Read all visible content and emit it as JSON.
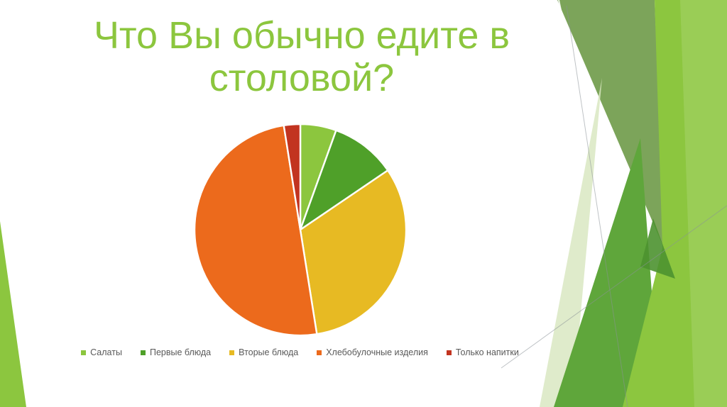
{
  "slide": {
    "title_lines": [
      "Что Вы обычно едите в",
      "столовой?"
    ]
  },
  "chart_data": {
    "type": "pie",
    "title": "Что Вы обычно едите в столовой?",
    "categories": [
      "Салаты",
      "Первые блюда",
      "Вторые блюда",
      "Хлебобулочные изделия",
      "Только напитки"
    ],
    "values": [
      5.5,
      10,
      32,
      50,
      2.5
    ],
    "unit": "percent-estimated-from-slice-angles",
    "colors": [
      "#8CC63E",
      "#4FA029",
      "#E7BA23",
      "#EC6A1C",
      "#C23420"
    ],
    "start_angle_deg": 0,
    "direction": "clockwise-from-top",
    "data_labels_shown": false,
    "legend_position": "bottom"
  },
  "theme": {
    "title_color": "#8CC63E",
    "legend_text_color": "#595959",
    "slide_background": "#FFFFFF",
    "slice_separator": "#FFFFFF",
    "decor": {
      "bright_green": "#8CC63F",
      "medium_green": "#5FA63B",
      "sage_green": "#7CA45A",
      "pale_green": "#D9E8C2",
      "dark_overlap_green": "#4C9230",
      "line_gray": "#8A9298"
    }
  }
}
